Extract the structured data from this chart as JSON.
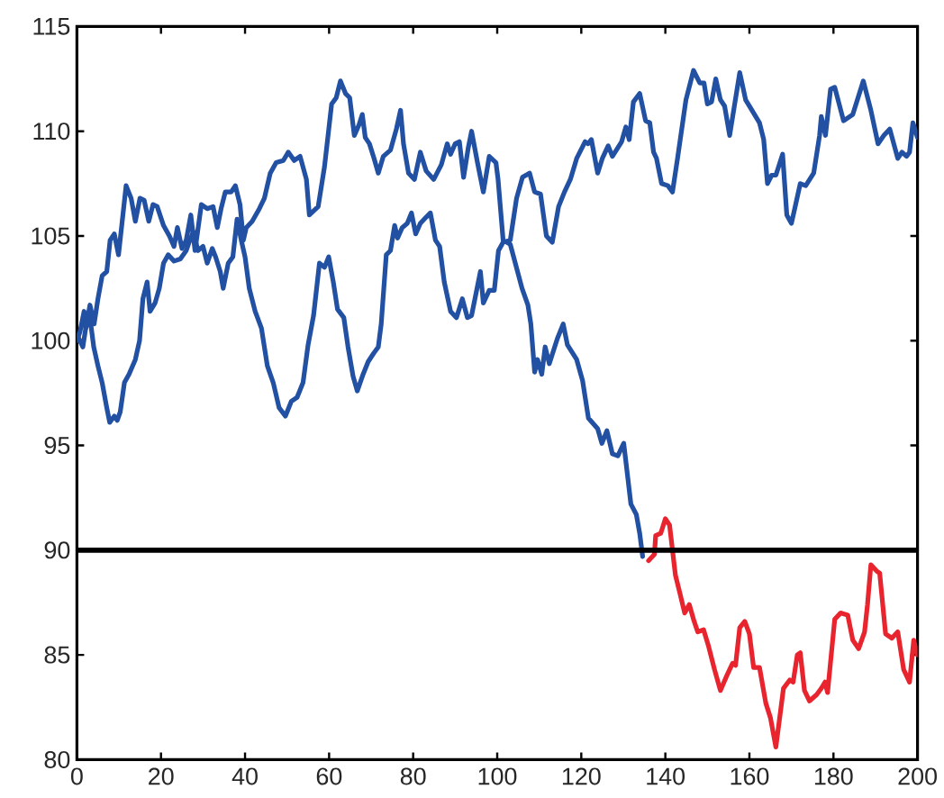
{
  "chart_data": {
    "type": "line",
    "xlim": [
      0,
      200
    ],
    "xticks": [
      0,
      20,
      40,
      60,
      80,
      100,
      120,
      140,
      160,
      180,
      200
    ],
    "ylim": [
      80,
      115
    ],
    "yticks": [
      80,
      85,
      90,
      95,
      100,
      105,
      110,
      115
    ],
    "ref_lines": [
      {
        "axis": "y",
        "value": 90,
        "color": "#000000"
      }
    ],
    "series": [
      {
        "color": "#2250a2",
        "x": [
          0,
          1.4,
          2.1,
          3.1,
          4.0,
          5.0,
          6.0,
          7.1,
          7.8,
          8.9,
          9.6,
          10.3,
          11.3,
          12.4,
          13.9,
          14.9,
          15.7,
          16.7,
          17.4,
          18.6,
          19.6,
          20.6,
          21.7,
          23.1,
          24.6,
          26,
          26.7,
          27.7,
          28.8,
          30,
          31,
          32.2,
          33,
          34.1,
          34.8,
          36,
          37.1,
          38.1,
          39.1,
          40,
          41,
          42.4,
          43.9,
          45.3,
          46.7,
          48.1,
          49.6,
          51,
          52.4,
          53.8,
          55,
          56.3,
          57.7,
          58.9,
          59.9,
          61,
          62,
          63.5,
          64.5,
          65.7,
          66.7,
          68.1,
          69.3,
          70.6,
          71.7,
          72.4,
          73.6,
          74.6,
          75.6,
          76.3,
          77.4,
          78.6,
          79.6,
          80.6,
          81.7,
          83.1,
          84.1,
          85.3,
          86.3,
          87.4,
          88.9,
          90.3,
          91.7,
          92.9,
          93.9,
          95,
          96,
          96.7,
          98.1,
          99.3,
          100.3,
          101.4,
          103.1,
          104.6,
          106,
          107.7,
          108.9,
          110.3,
          111.7,
          113.1,
          114.6,
          116,
          117.4,
          118.9,
          120.9,
          121.6,
          122.4,
          123.9,
          125,
          126.4,
          127.4,
          129.6,
          130.6,
          131.4,
          132.4,
          133.9,
          135.3,
          136.3,
          137.2,
          137.9,
          139.1,
          140.6,
          141.7,
          142.9,
          144.9,
          146.7,
          148.2,
          149.2,
          150,
          151,
          152,
          153.1,
          154.1,
          155.3,
          157.7,
          159.1,
          160.6,
          162.4,
          163.4,
          164.3,
          165.3,
          166.3,
          167.9,
          168.9,
          170,
          171,
          172.1,
          173.4,
          175.3,
          176.7,
          177.1,
          178.1,
          179.3,
          180.3,
          182.4,
          184.6,
          187.1,
          188.9,
          190.6,
          192,
          193.4,
          195.3,
          196.3,
          197.4,
          198.1,
          198.9,
          200
        ],
        "values": [
          100.3,
          99.7,
          100.6,
          101.1,
          99.7,
          98.8,
          98.0,
          96.8,
          96.1,
          96.4,
          96.2,
          96.6,
          98.0,
          98.4,
          99.1,
          100.0,
          102.0,
          102.8,
          101.4,
          101.8,
          102.5,
          103.7,
          104.1,
          103.8,
          103.9,
          104.3,
          104.7,
          105.2,
          104.3,
          104.5,
          103.7,
          104.4,
          104.0,
          103.3,
          102.5,
          103.7,
          104.0,
          105.8,
          104.8,
          104.0,
          102.5,
          101.4,
          100.6,
          98.8,
          98.0,
          96.8,
          96.4,
          97.1,
          97.3,
          98.0,
          99.8,
          101.2,
          103.7,
          103.5,
          104.0,
          102.8,
          101.5,
          101.1,
          99.7,
          98.3,
          97.6,
          98.4,
          99.0,
          99.4,
          99.7,
          100.8,
          104.1,
          104.3,
          105.5,
          104.9,
          105.4,
          105.6,
          106.1,
          105.1,
          105.6,
          105.9,
          106.1,
          104.8,
          104.5,
          102.8,
          101.4,
          101.1,
          102.0,
          101.1,
          101.2,
          102.3,
          103.3,
          101.8,
          102.4,
          102.4,
          104.3,
          104.7,
          104.8,
          106.8,
          107.8,
          108.0,
          107.1,
          107.0,
          105.0,
          104.7,
          106.4,
          107.1,
          107.7,
          108.7,
          109.5,
          109.4,
          109.6,
          108.0,
          108.7,
          109.3,
          108.8,
          109.5,
          110.2,
          109.6,
          111.4,
          111.8,
          110.5,
          110.4,
          109.0,
          108.7,
          107.5,
          107.4,
          107.1,
          108.7,
          111.5,
          112.9,
          112.3,
          112.3,
          111.3,
          111.4,
          112.5,
          111.5,
          111.2,
          109.8,
          112.8,
          111.5,
          111.0,
          110.4,
          109.6,
          107.5,
          107.9,
          107.9,
          108.9,
          106.0,
          105.6,
          106.5,
          107.5,
          107.4,
          108.0,
          109.8,
          110.7,
          109.8,
          112.0,
          112.1,
          110.5,
          110.8,
          112.4,
          111.0,
          109.4,
          109.8,
          110.1,
          108.7,
          109.0,
          108.8,
          109.0,
          110.4,
          109.7
        ]
      },
      {
        "color": "#2250a2",
        "x": [
          0,
          0.7,
          1.7,
          2.1,
          3.1,
          4.1,
          5.0,
          6.0,
          7.1,
          7.9,
          8.9,
          9.9,
          11.7,
          12.9,
          13.9,
          15,
          16,
          17.1,
          18.1,
          19.1,
          20.6,
          22,
          23.1,
          23.9,
          25,
          26,
          27.1,
          28.1,
          29.6,
          31,
          32.4,
          33.4,
          34.3,
          35.3,
          36.7,
          37.7,
          38.8,
          39.6,
          40.3,
          41.7,
          43.4,
          44.6,
          46,
          47.4,
          49.1,
          50.3,
          51.7,
          53.1,
          54.6,
          55.3,
          57.4,
          58.9,
          60.6,
          61.7,
          62.7,
          63.9,
          64.9,
          66,
          67.1,
          67.9,
          68.6,
          69.6,
          70.7,
          71.7,
          72.9,
          74.6,
          76,
          77,
          77.7,
          78.9,
          80.3,
          81.7,
          83.1,
          84.9,
          86.7,
          88.1,
          88.9,
          90,
          91,
          92,
          93.1,
          93.9,
          95.3,
          96.7,
          98.1,
          99.7,
          100.2,
          101.4,
          103.1,
          105.9,
          107.3,
          108.0,
          108.9,
          109.6,
          110.6,
          111.4,
          112.4,
          114.3,
          115.7,
          116.7,
          118.9,
          120.3,
          121.7,
          123.9,
          124.9,
          126.1,
          127.4,
          128.7,
          130.1,
          131.1,
          131.8,
          133.1,
          133.9,
          134.6
        ],
        "values": [
          100.0,
          100.4,
          101.4,
          100.6,
          101.7,
          100.8,
          102.0,
          103.1,
          103.3,
          104.8,
          105.1,
          104.1,
          107.4,
          106.8,
          105.7,
          106.8,
          106.7,
          105.7,
          106.5,
          106.4,
          105.5,
          105.0,
          104.5,
          105.4,
          104.4,
          104.8,
          106.0,
          104.3,
          106.5,
          106.3,
          106.4,
          105.4,
          106.3,
          107.1,
          107.1,
          107.4,
          106.5,
          104.8,
          105.4,
          105.7,
          106.3,
          106.8,
          108.0,
          108.5,
          108.6,
          109.0,
          108.6,
          108.8,
          107.7,
          106.0,
          106.4,
          108.3,
          111.3,
          111.6,
          112.4,
          111.8,
          111.6,
          109.8,
          110.3,
          110.8,
          109.7,
          109.4,
          108.7,
          108.0,
          108.8,
          109.1,
          110.1,
          111.0,
          109.4,
          108.0,
          107.7,
          109.0,
          108.1,
          107.7,
          108.4,
          109.4,
          108.9,
          109.4,
          109.5,
          107.8,
          109.2,
          110.0,
          108.5,
          107.1,
          108.8,
          108.5,
          107.7,
          104.8,
          104.6,
          102.5,
          101.7,
          100.8,
          98.5,
          99.1,
          98.4,
          99.7,
          98.9,
          100.1,
          100.8,
          99.8,
          99.1,
          98.1,
          96.3,
          95.8,
          95.1,
          95.7,
          94.6,
          94.5,
          95.1,
          93.4,
          92.2,
          91.7,
          90.8,
          89.7
        ]
      },
      {
        "color": "#e8252f",
        "x": [
          136,
          137.4,
          137.7,
          138.9,
          140,
          141,
          141.7,
          142.4,
          143.4,
          144.6,
          145.7,
          146.7,
          147.7,
          149.1,
          150.3,
          151.7,
          153.1,
          154.6,
          156,
          156.7,
          157.7,
          158.9,
          160,
          161,
          162.4,
          163.9,
          165,
          166.3,
          167.4,
          168.1,
          169.6,
          170.4,
          171.4,
          172.1,
          173.1,
          174.3,
          176,
          177.1,
          178,
          178.6,
          180.3,
          181.7,
          183.4,
          184.6,
          186,
          187.4,
          188.1,
          188.9,
          190.3,
          191,
          192.4,
          193.9,
          195.3,
          196.7,
          198.1,
          199.1,
          200
        ],
        "values": [
          89.5,
          89.8,
          90.7,
          90.8,
          91.5,
          91.2,
          90.0,
          88.8,
          88.0,
          87.0,
          87.4,
          86.7,
          86.1,
          86.2,
          85.4,
          84.3,
          83.3,
          84.0,
          84.6,
          84.5,
          86.3,
          86.6,
          86.0,
          84.4,
          84.4,
          82.7,
          82.0,
          80.6,
          82.3,
          83.4,
          83.8,
          83.7,
          85.0,
          85.1,
          83.3,
          82.8,
          83.1,
          83.4,
          83.7,
          83.2,
          86.7,
          87.0,
          86.9,
          85.7,
          85.3,
          86.1,
          87.4,
          89.3,
          89.0,
          88.9,
          86.0,
          85.8,
          86.1,
          84.3,
          83.7,
          85.7,
          85.0
        ]
      }
    ]
  }
}
